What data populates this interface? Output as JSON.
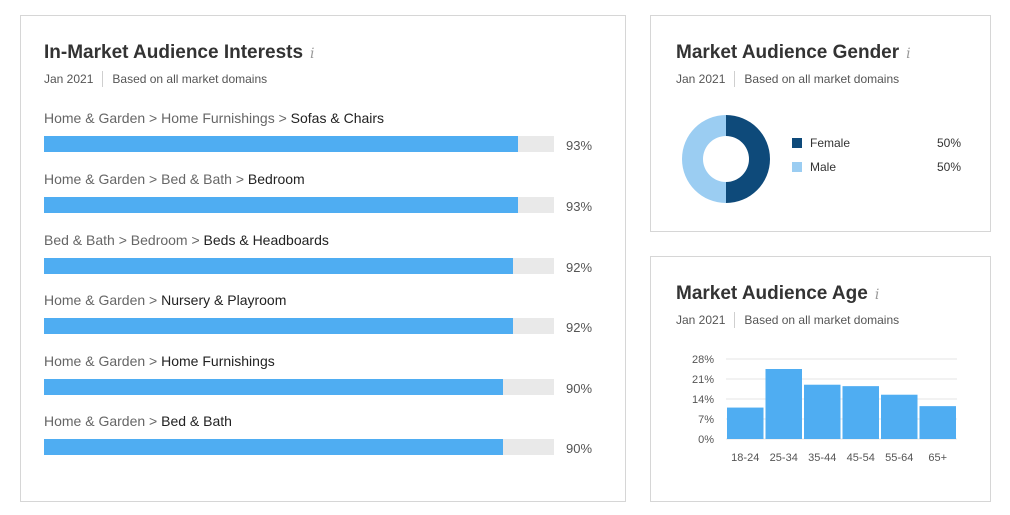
{
  "interests_card": {
    "title": "In-Market Audience Interests",
    "info_icon": "i",
    "date": "Jan 2021",
    "scope": "Based on all market domains",
    "items": [
      {
        "path": "Home & Garden > Home Furnishings > ",
        "leaf": "Sofas & Chairs",
        "pct_label": "93%",
        "value": 93
      },
      {
        "path": "Home & Garden > Bed & Bath > ",
        "leaf": "Bedroom",
        "pct_label": "93%",
        "value": 93
      },
      {
        "path": "Bed & Bath > Bedroom > ",
        "leaf": "Beds & Headboards",
        "pct_label": "92%",
        "value": 92
      },
      {
        "path": "Home & Garden > ",
        "leaf": "Nursery & Playroom",
        "pct_label": "92%",
        "value": 92
      },
      {
        "path": "Home & Garden > ",
        "leaf": "Home Furnishings",
        "pct_label": "90%",
        "value": 90
      },
      {
        "path": "Home & Garden > ",
        "leaf": "Bed & Bath",
        "pct_label": "90%",
        "value": 90
      }
    ]
  },
  "gender_card": {
    "title": "Market Audience Gender",
    "info_icon": "i",
    "date": "Jan 2021",
    "scope": "Based on all market domains",
    "legend": [
      {
        "name": "Female",
        "value_label": "50%",
        "color": "#0e4a7a"
      },
      {
        "name": "Male",
        "value_label": "50%",
        "color": "#9bcdf2"
      }
    ]
  },
  "age_card": {
    "title": "Market Audience Age",
    "info_icon": "i",
    "date": "Jan 2021",
    "scope": "Based on all market domains",
    "y_tick_labels": [
      "28%",
      "21%",
      "14%",
      "7%",
      "0%"
    ]
  },
  "colors": {
    "bar": "#4fadf2",
    "bar_track": "#e9e9e9",
    "female": "#0e4a7a",
    "male": "#9bcdf2"
  },
  "chart_data": [
    {
      "type": "bar",
      "orientation": "horizontal",
      "title": "In-Market Audience Interests",
      "categories": [
        "Sofas & Chairs",
        "Bedroom",
        "Beds & Headboards",
        "Nursery & Playroom",
        "Home Furnishings",
        "Bed & Bath"
      ],
      "values": [
        93,
        93,
        92,
        92,
        90,
        90
      ],
      "ylim": [
        0,
        100
      ]
    },
    {
      "type": "pie",
      "donut": true,
      "title": "Market Audience Gender",
      "categories": [
        "Female",
        "Male"
      ],
      "values": [
        50,
        50
      ]
    },
    {
      "type": "bar",
      "title": "Market Audience Age",
      "categories": [
        "18-24",
        "25-34",
        "35-44",
        "45-54",
        "55-64",
        "65+"
      ],
      "values": [
        11,
        24.5,
        19,
        18.5,
        15.5,
        11.5
      ],
      "ylim": [
        0,
        28
      ],
      "yticks": [
        0,
        7,
        14,
        21,
        28
      ],
      "grid": true
    }
  ]
}
